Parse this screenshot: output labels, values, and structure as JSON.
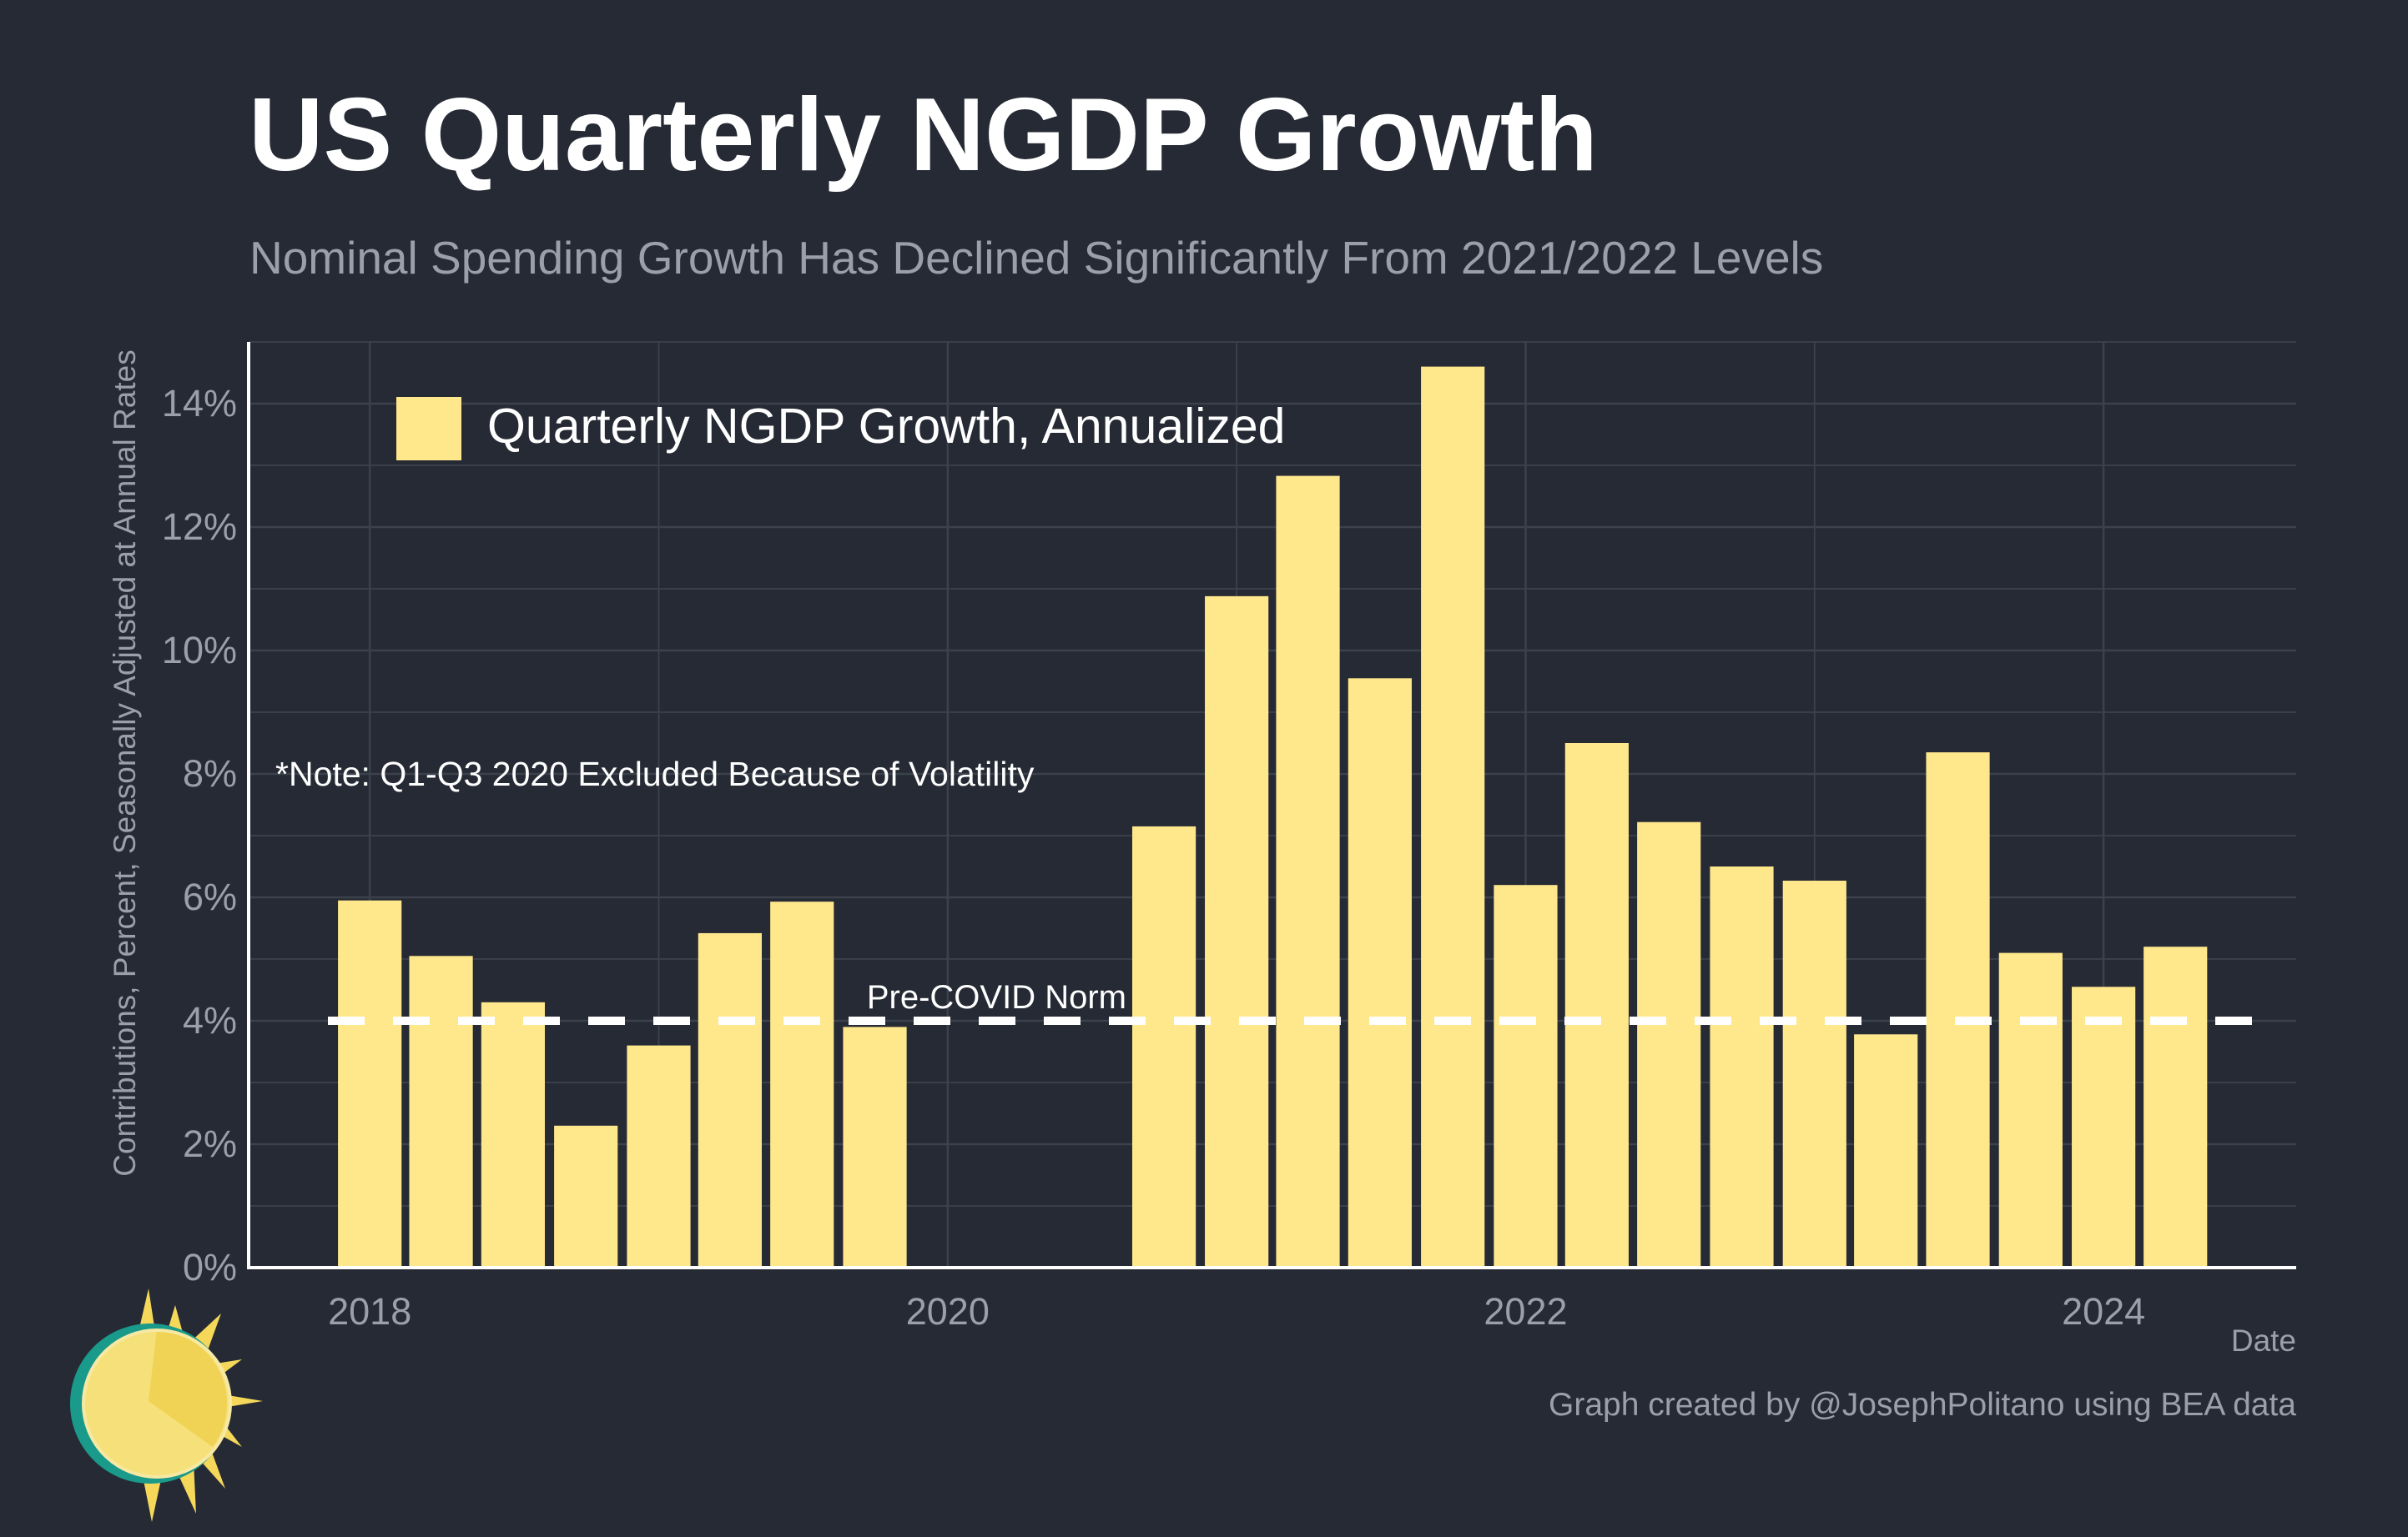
{
  "title": "US Quarterly NGDP Growth",
  "subtitle": "Nominal Spending Growth Has Declined Significantly From 2021/2022 Levels",
  "credit": "Graph created by @JosephPolitano using BEA data",
  "logo": {
    "icon": "sun-logo-icon"
  },
  "colors": {
    "background": "#252a34",
    "bar": "#ffe78c",
    "grid": "#3c414c",
    "axis": "#ffffff",
    "muted_text": "#9aa0aa",
    "reference_line": "#ffffff"
  },
  "chart_data": {
    "type": "bar",
    "title": "US Quarterly NGDP Growth",
    "subtitle": "Nominal Spending Growth Has Declined Significantly From 2021/2022 Levels",
    "xlabel": "Date",
    "ylabel": "Contributions, Percent, Seasonally Adjusted at Annual Rates",
    "y_unit": "%",
    "ylim": [
      0,
      15
    ],
    "yticks": [
      0,
      2,
      4,
      6,
      8,
      10,
      12,
      14
    ],
    "ytick_labels": [
      "0%",
      "2%",
      "4%",
      "6%",
      "8%",
      "10%",
      "12%",
      "14%"
    ],
    "xlim": [
      "2017-08-01",
      "2024-09-01"
    ],
    "xticks": [
      "2018-01-01",
      "2020-01-01",
      "2022-01-01",
      "2024-01-01"
    ],
    "xtick_labels": [
      "2018",
      "2020",
      "2022",
      "2024"
    ],
    "grid": true,
    "legend": {
      "position": "top-left",
      "entries": [
        "Quarterly NGDP Growth, Annualized"
      ]
    },
    "series": [
      {
        "name": "Quarterly NGDP Growth, Annualized",
        "dates": [
          "2018-01-01",
          "2018-04-01",
          "2018-07-01",
          "2018-10-01",
          "2019-01-01",
          "2019-04-01",
          "2019-07-01",
          "2019-10-01",
          "2020-10-01",
          "2021-01-01",
          "2021-04-01",
          "2021-07-01",
          "2021-10-01",
          "2022-01-01",
          "2022-04-01",
          "2022-07-01",
          "2022-10-01",
          "2023-01-01",
          "2023-04-01",
          "2023-07-01",
          "2023-10-01",
          "2024-01-01",
          "2024-04-01"
        ],
        "values": [
          5.95,
          5.05,
          4.3,
          2.3,
          3.6,
          5.42,
          5.93,
          3.9,
          7.15,
          10.88,
          12.83,
          9.55,
          14.6,
          6.2,
          8.5,
          7.22,
          6.5,
          6.27,
          3.78,
          8.35,
          5.1,
          4.55,
          5.2
        ]
      }
    ],
    "reference_lines": [
      {
        "label": "Pre-COVID Norm",
        "value": 4,
        "style": "dashed"
      }
    ],
    "annotations": [
      "*Note: Q1-Q3 2020 Excluded Because of Volatility"
    ]
  }
}
